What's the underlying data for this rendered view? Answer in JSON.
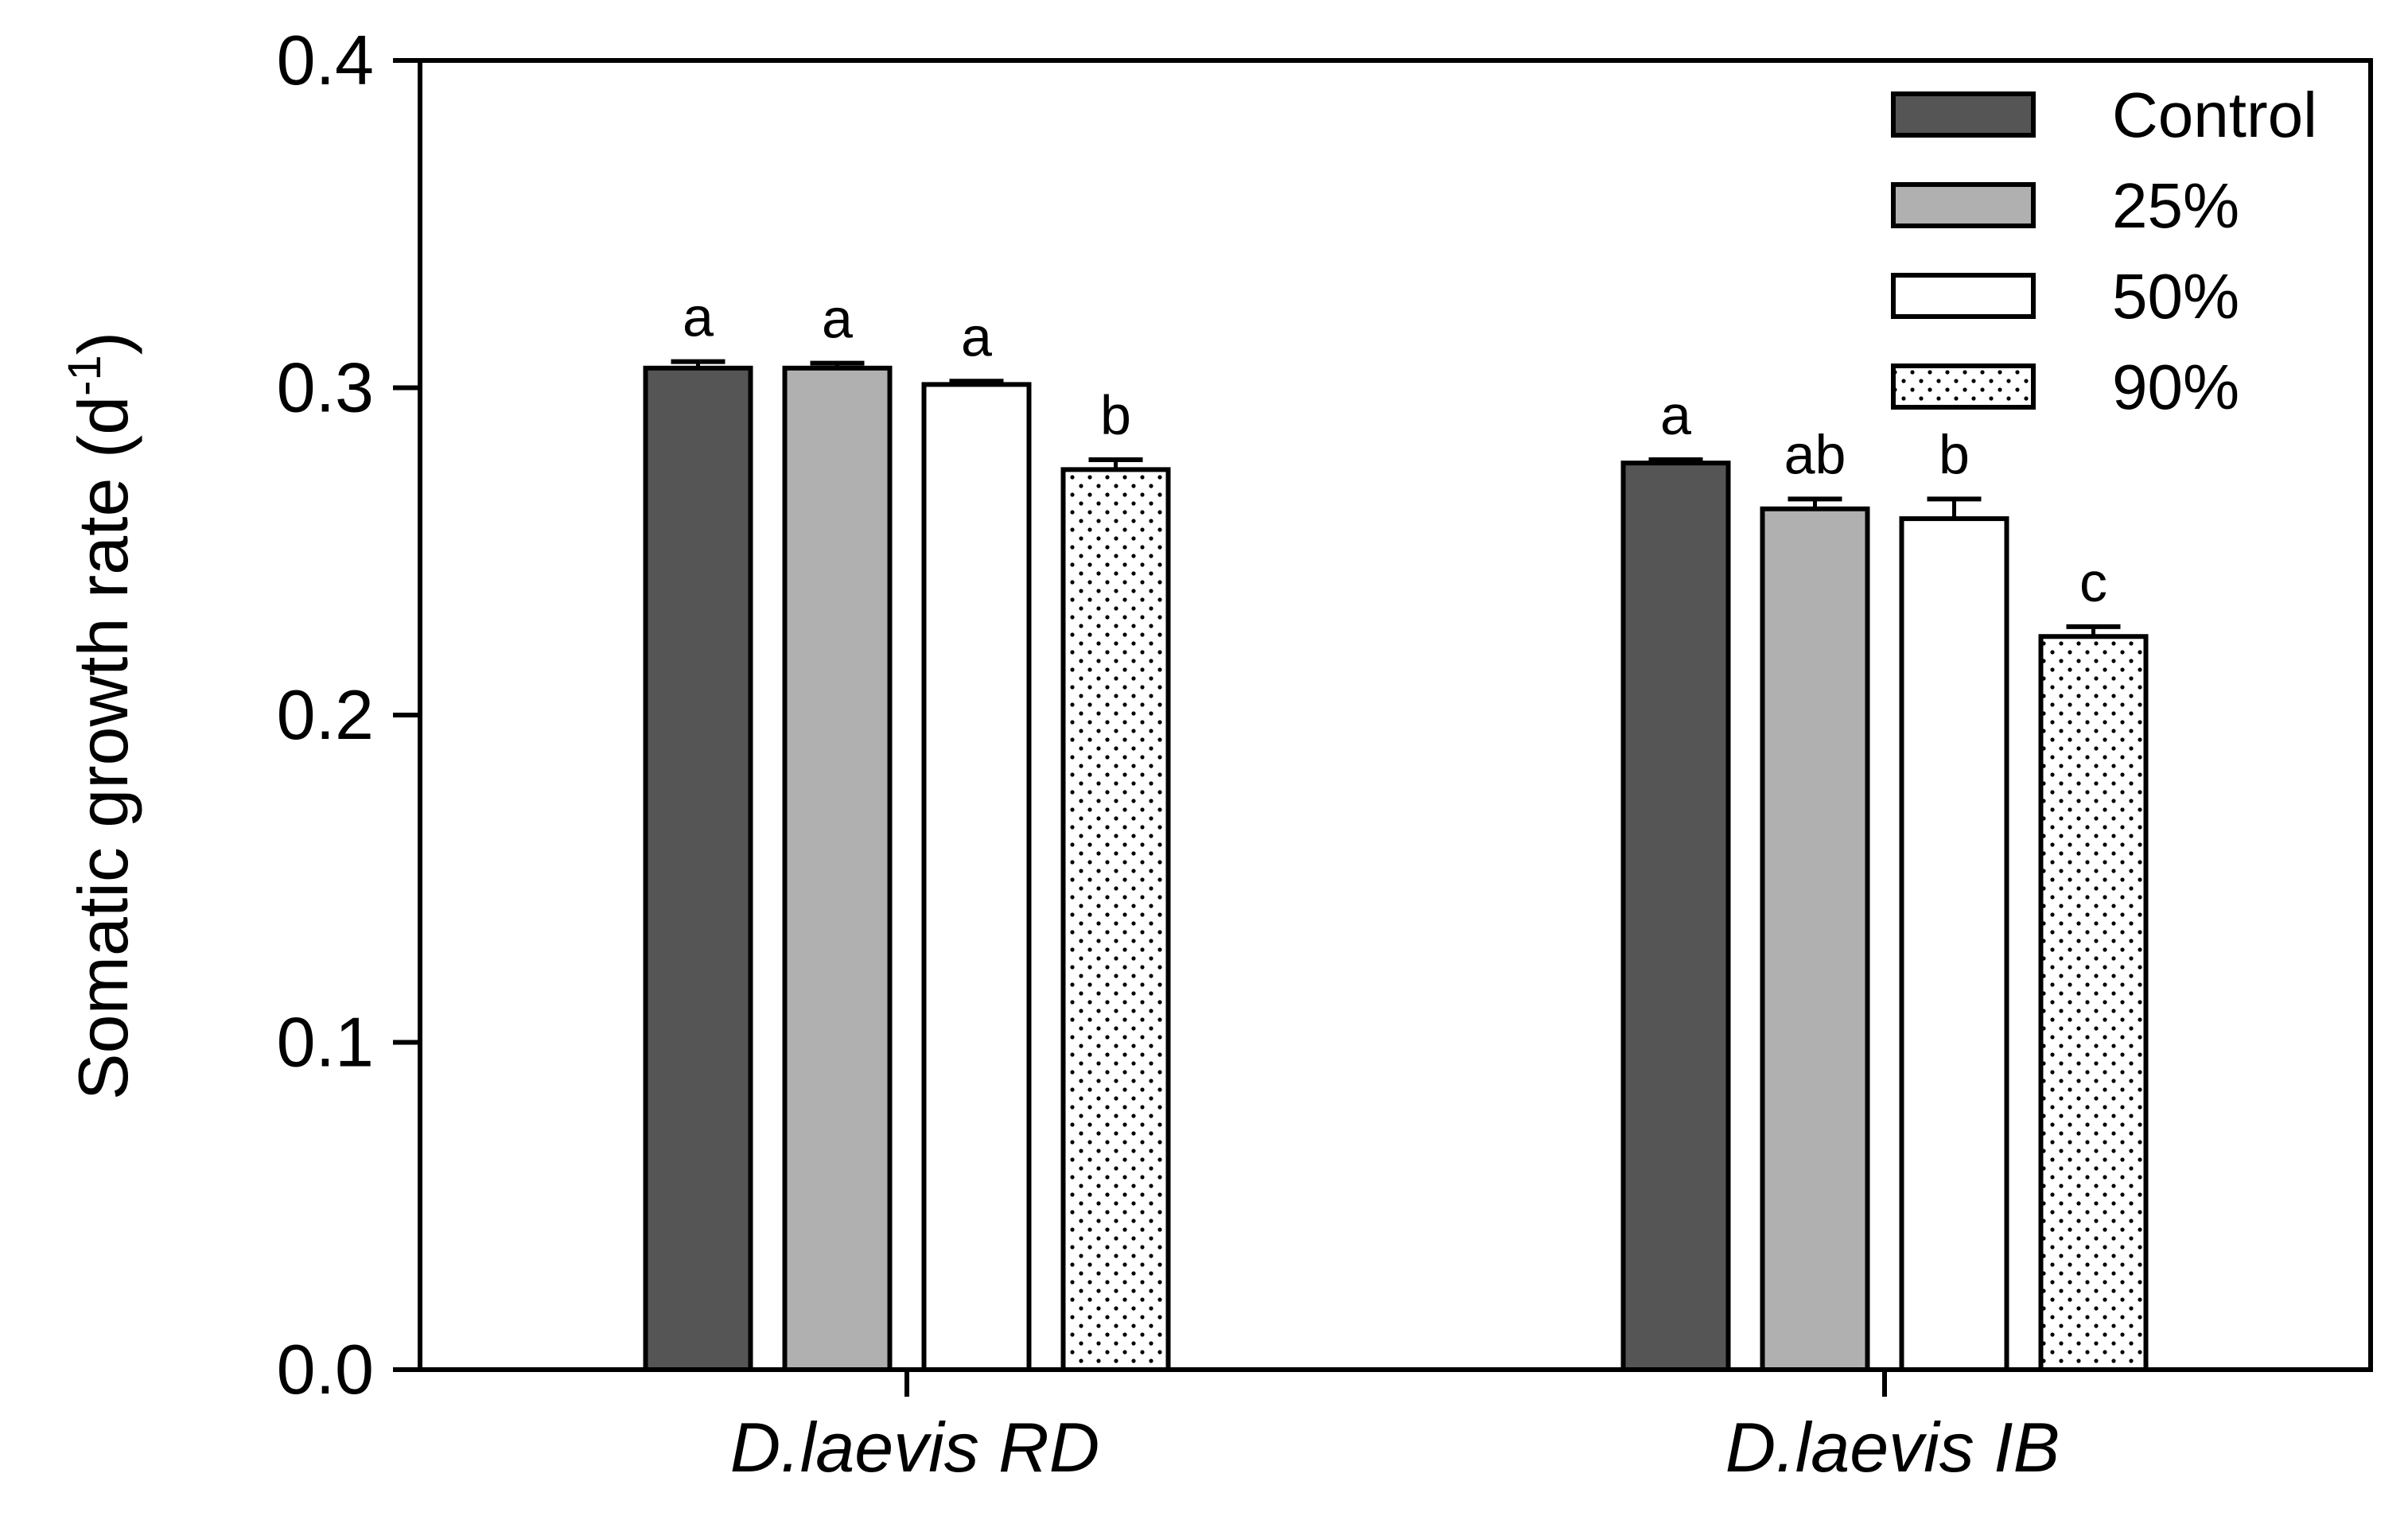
{
  "chart_data": {
    "type": "bar",
    "ylabel_main": "Somatic growth rate (d",
    "ylabel_sup": "-1",
    "ylabel_close": ")",
    "ylim": [
      0,
      0.4
    ],
    "yticks": [
      "0.0",
      "0.1",
      "0.2",
      "0.3",
      "0.4"
    ],
    "ytick_values": [
      0.0,
      0.1,
      0.2,
      0.3,
      0.4
    ],
    "categories": [
      {
        "prefix": "D.laevis ",
        "suffix": "RD"
      },
      {
        "prefix": "D.laevis ",
        "suffix": "IB"
      }
    ],
    "legend_position": "top-right",
    "series": [
      {
        "name": "Control",
        "fill": "#555555",
        "pattern": "solid",
        "values": [
          0.306,
          0.277
        ],
        "errors": [
          0.002,
          0.001
        ],
        "letters": [
          "a",
          "a"
        ]
      },
      {
        "name": "25%",
        "fill": "#b0b0b0",
        "pattern": "solid",
        "values": [
          0.306,
          0.263
        ],
        "errors": [
          0.0015,
          0.003
        ],
        "letters": [
          "a",
          "ab"
        ]
      },
      {
        "name": "50%",
        "fill": "#ffffff",
        "pattern": "solid",
        "values": [
          0.301,
          0.26
        ],
        "errors": [
          0.001,
          0.006
        ],
        "letters": [
          "a",
          "b"
        ]
      },
      {
        "name": "90%",
        "fill": "#ffffff",
        "pattern": "dots",
        "values": [
          0.275,
          0.224
        ],
        "errors": [
          0.003,
          0.003
        ],
        "letters": [
          "b",
          "c"
        ]
      }
    ]
  }
}
